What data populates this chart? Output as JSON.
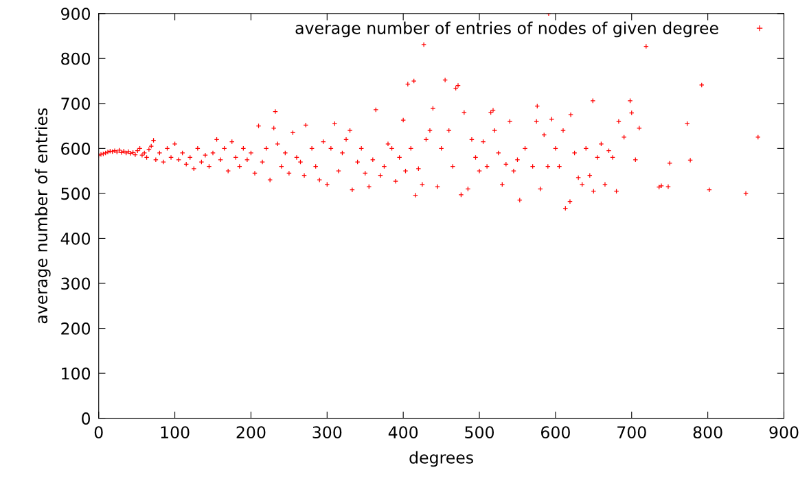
{
  "chart_data": {
    "type": "scatter",
    "xlabel": "degrees",
    "ylabel": "average number of entries",
    "xlim": [
      0,
      900
    ],
    "ylim": [
      0,
      900
    ],
    "xticks": [
      0,
      100,
      200,
      300,
      400,
      500,
      600,
      700,
      800,
      900
    ],
    "yticks": [
      0,
      100,
      200,
      300,
      400,
      500,
      600,
      700,
      800,
      900
    ],
    "grid": false,
    "legend": "top right",
    "marker": "cross",
    "series": [
      {
        "name": "average number of entries of nodes of given degree",
        "color": "#ff0000",
        "x": [
          0,
          3,
          6,
          9,
          12,
          15,
          18,
          21,
          24,
          27,
          30,
          33,
          36,
          39,
          42,
          45,
          48,
          51,
          54,
          57,
          60,
          63,
          66,
          69,
          72,
          75,
          80,
          85,
          90,
          95,
          100,
          105,
          110,
          115,
          120,
          125,
          130,
          135,
          140,
          145,
          150,
          155,
          160,
          165,
          170,
          175,
          180,
          185,
          190,
          195,
          200,
          205,
          210,
          215,
          220,
          225,
          230,
          232,
          235,
          240,
          245,
          250,
          255,
          260,
          265,
          270,
          272,
          280,
          285,
          290,
          295,
          300,
          305,
          310,
          315,
          320,
          325,
          330,
          333,
          340,
          345,
          350,
          355,
          360,
          364,
          370,
          375,
          380,
          385,
          390,
          395,
          400,
          403,
          406,
          410,
          414,
          416,
          420,
          425,
          427,
          430,
          435,
          439,
          445,
          450,
          455,
          460,
          465,
          469,
          472,
          476,
          480,
          485,
          490,
          495,
          500,
          505,
          510,
          515,
          518,
          520,
          525,
          530,
          535,
          540,
          545,
          550,
          553,
          560,
          570,
          575,
          576,
          580,
          585,
          590,
          591,
          595,
          600,
          605,
          610,
          613,
          619,
          620,
          625,
          630,
          635,
          640,
          645,
          649,
          650,
          655,
          660,
          665,
          670,
          675,
          680,
          683,
          690,
          698,
          700,
          705,
          710,
          719,
          736,
          739,
          748,
          750,
          773,
          777,
          792,
          802,
          850,
          866
        ],
        "values": [
          585,
          587,
          588,
          590,
          592,
          594,
          593,
          595,
          592,
          596,
          591,
          594,
          590,
          593,
          589,
          591,
          586,
          595,
          600,
          585,
          590,
          580,
          598,
          605,
          618,
          575,
          590,
          570,
          600,
          580,
          610,
          575,
          590,
          565,
          580,
          555,
          600,
          570,
          585,
          560,
          590,
          620,
          575,
          600,
          550,
          615,
          580,
          560,
          600,
          575,
          590,
          545,
          650,
          570,
          600,
          530,
          645,
          682,
          610,
          560,
          590,
          545,
          635,
          580,
          570,
          540,
          652,
          600,
          560,
          530,
          615,
          520,
          600,
          655,
          550,
          590,
          620,
          640,
          508,
          570,
          600,
          545,
          515,
          575,
          686,
          540,
          560,
          610,
          600,
          527,
          580,
          663,
          550,
          743,
          600,
          750,
          496,
          555,
          520,
          831,
          620,
          640,
          689,
          515,
          600,
          752,
          640,
          560,
          734,
          740,
          497,
          680,
          510,
          620,
          580,
          550,
          615,
          560,
          680,
          685,
          640,
          590,
          520,
          565,
          660,
          550,
          575,
          485,
          600,
          560,
          660,
          694,
          510,
          630,
          560,
          900,
          665,
          600,
          560,
          640,
          467,
          482,
          675,
          590,
          535,
          520,
          600,
          540,
          706,
          505,
          580,
          610,
          520,
          595,
          580,
          505,
          660,
          625,
          706,
          679,
          575,
          645,
          827,
          514,
          517,
          515,
          567,
          655,
          574,
          741,
          508,
          500,
          625
        ]
      }
    ]
  }
}
